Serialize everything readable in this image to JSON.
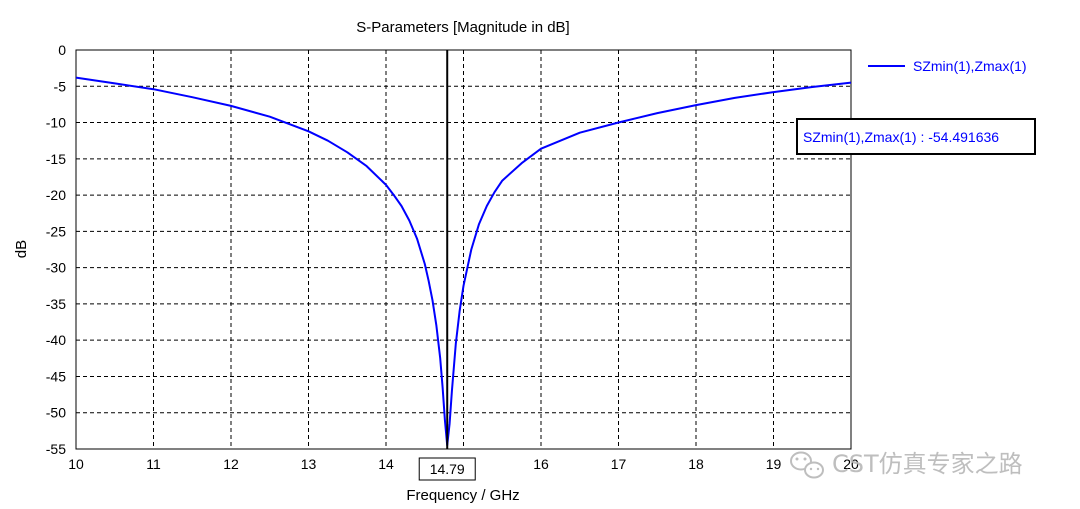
{
  "chart_data": {
    "type": "line",
    "title": "S-Parameters [Magnitude in dB]",
    "xlabel": "Frequency / GHz",
    "ylabel": "dB",
    "xlim": [
      10,
      20
    ],
    "ylim": [
      -55,
      0
    ],
    "x_ticks": [
      10,
      11,
      12,
      13,
      14,
      15,
      16,
      17,
      18,
      19,
      20
    ],
    "y_ticks": [
      0,
      -5,
      -10,
      -15,
      -20,
      -25,
      -30,
      -35,
      -40,
      -45,
      -50,
      -55
    ],
    "grid": true,
    "legend_position": "top-right",
    "series": [
      {
        "name": "SZmin(1),Zmax(1)",
        "color": "#0000ff",
        "x": [
          10,
          10.5,
          11,
          11.5,
          12,
          12.5,
          13,
          13.25,
          13.5,
          13.75,
          14,
          14.1,
          14.2,
          14.3,
          14.4,
          14.5,
          14.55,
          14.6,
          14.65,
          14.7,
          14.73,
          14.76,
          14.79,
          14.82,
          14.85,
          14.9,
          14.95,
          15,
          15.1,
          15.2,
          15.3,
          15.4,
          15.5,
          15.75,
          16,
          16.5,
          17,
          17.5,
          18,
          18.5,
          19,
          19.5,
          20
        ],
        "y": [
          -3.8,
          -4.6,
          -5.4,
          -6.5,
          -7.7,
          -9.2,
          -11.2,
          -12.5,
          -14.1,
          -16.0,
          -18.6,
          -20.0,
          -21.5,
          -23.5,
          -26.0,
          -29.5,
          -31.8,
          -34.5,
          -38.0,
          -42.5,
          -46.5,
          -51.0,
          -54.49,
          -51.5,
          -47.0,
          -40.5,
          -36.0,
          -32.5,
          -27.5,
          -24.0,
          -21.5,
          -19.6,
          -18.0,
          -15.6,
          -13.6,
          -11.4,
          -10.0,
          -8.7,
          -7.6,
          -6.6,
          -5.8,
          -5.1,
          -4.5
        ]
      }
    ],
    "marker": {
      "x_label": "14.79",
      "readout": "SZmin(1),Zmax(1) : -54.491636",
      "x": 14.79,
      "y": -54.491636
    }
  },
  "watermark": {
    "text": "CST仿真专家之路",
    "icon": "wechat-icon"
  },
  "colors": {
    "series": "#0000ff",
    "grid": "#000000",
    "axis": "#000000",
    "marker_line": "#000000",
    "watermark": "#b8b8b8"
  }
}
